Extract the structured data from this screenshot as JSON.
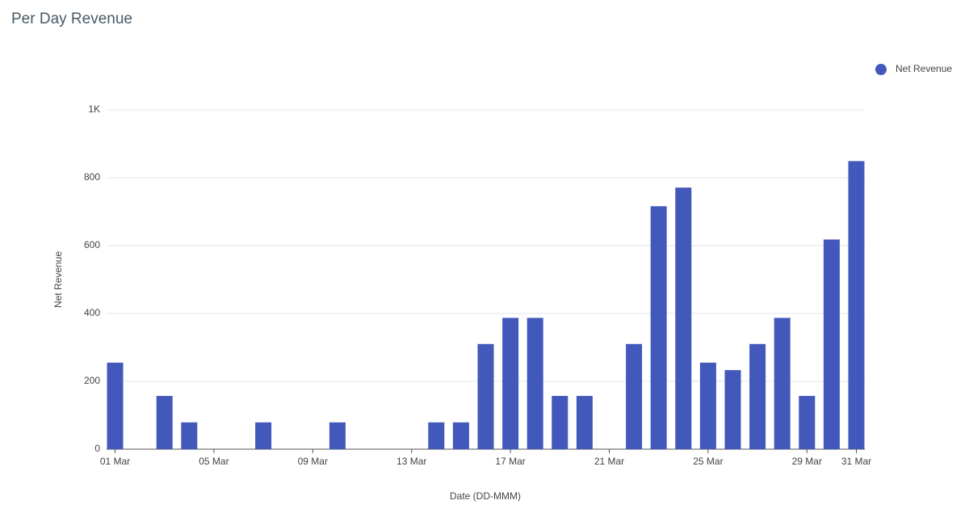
{
  "chart_data": {
    "type": "bar",
    "title": "Per Day Revenue",
    "x_label": "Date (DD-MMM)",
    "y_label": "Net Revenue",
    "categories": [
      "01 Mar",
      null,
      null,
      null,
      "05 Mar",
      null,
      null,
      null,
      "09 Mar",
      null,
      null,
      null,
      "13 Mar",
      null,
      null,
      null,
      "17 Mar",
      null,
      null,
      null,
      "21 Mar",
      null,
      null,
      null,
      "25 Mar",
      null,
      null,
      null,
      "29 Mar",
      null,
      "31 Mar"
    ],
    "series": [
      {
        "name": "Net Revenue",
        "color": "#4358bb",
        "values": [
          255,
          0,
          157,
          79,
          0,
          0,
          79,
          0,
          0,
          79,
          0,
          0,
          0,
          79,
          79,
          310,
          387,
          387,
          157,
          157,
          0,
          310,
          716,
          771,
          255,
          233,
          310,
          387,
          157,
          618,
          849
        ]
      }
    ],
    "ylim": [
      0,
      1000
    ],
    "yticks": [
      0,
      200,
      400,
      600,
      800,
      {
        "value": 1000,
        "label": "1K"
      }
    ],
    "grid": true,
    "legend": "top-right"
  }
}
